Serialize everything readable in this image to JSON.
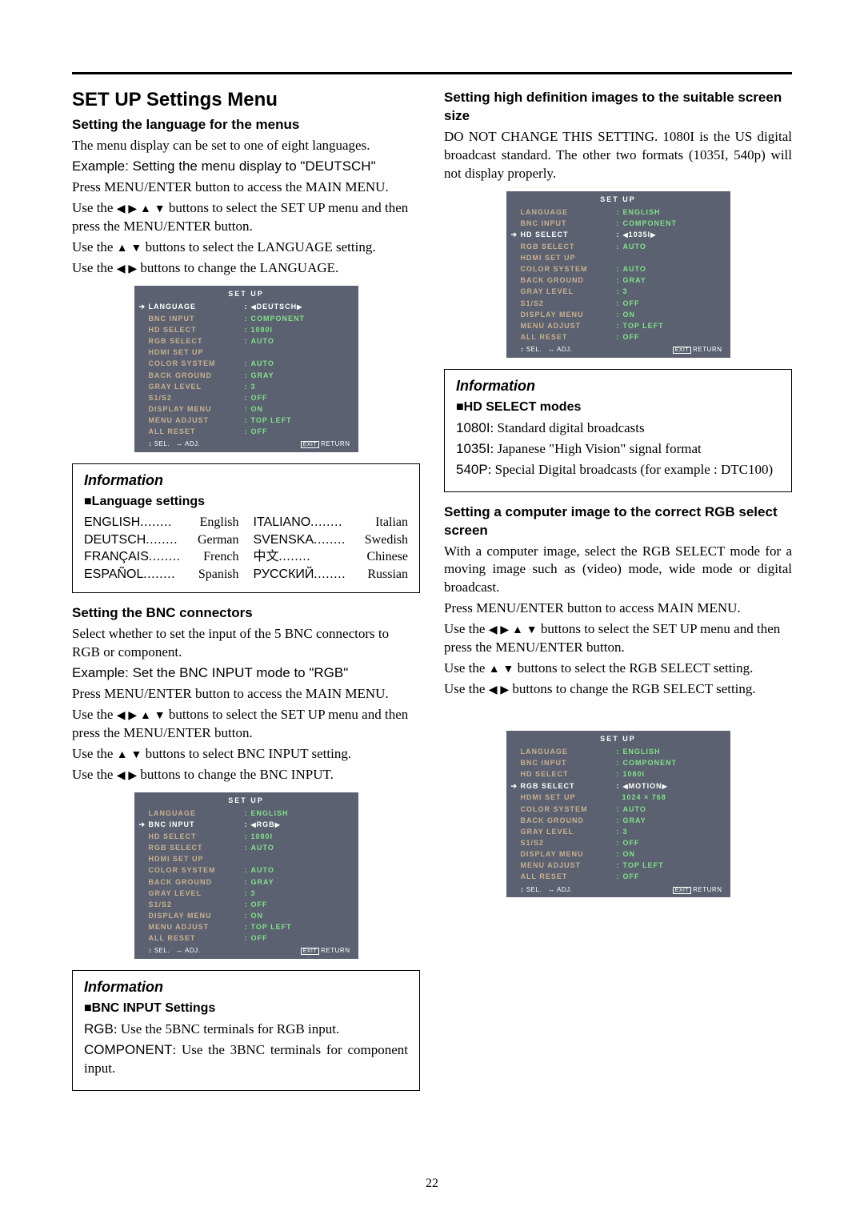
{
  "page_number": "22",
  "left": {
    "main_title": "SET UP Settings Menu",
    "sect1": {
      "heading": "Setting the language for the menus",
      "p1": "The menu display can be set to one of eight languages.",
      "p2": "Example: Setting the menu display to \"DEUTSCH\"",
      "p3": "Press MENU/ENTER button to access the MAIN MENU.",
      "p4a": "Use the ",
      "p4b": " buttons to select the SET UP menu and then press the MENU/ENTER button.",
      "p5a": "Use the ",
      "p5b": " buttons to select the LANGUAGE setting.",
      "p6a": "Use the ",
      "p6b": " buttons to change the LANGUAGE."
    },
    "osd1": {
      "title": "SET UP",
      "active_index": 0,
      "rows": [
        {
          "label": "LANGUAGE",
          "value": "DEUTSCH",
          "triangles": true
        },
        {
          "label": "BNC INPUT",
          "value": "COMPONENT"
        },
        {
          "label": "HD SELECT",
          "value": "1080I"
        },
        {
          "label": "RGB SELECT",
          "value": "AUTO"
        },
        {
          "label": "HDMI SET UP",
          "value": ""
        },
        {
          "label": "COLOR SYSTEM",
          "value": "AUTO"
        },
        {
          "label": "BACK GROUND",
          "value": "GRAY"
        },
        {
          "label": "GRAY LEVEL",
          "value": "3"
        },
        {
          "label": "S1/S2",
          "value": "OFF"
        },
        {
          "label": "DISPLAY MENU",
          "value": "ON"
        },
        {
          "label": "MENU ADJUST",
          "value": "TOP LEFT"
        },
        {
          "label": "ALL RESET",
          "value": "OFF"
        }
      ],
      "foot_sel": "SEL.",
      "foot_adj": "ADJ.",
      "foot_exit": "EXIT",
      "foot_return": "RETURN"
    },
    "info1": {
      "title": "Information",
      "sub": "Language settings",
      "languages": [
        [
          {
            "l": "ENGLISH",
            "r": "English"
          },
          {
            "l": "DEUTSCH",
            "r": "German"
          },
          {
            "l": "FRANÇAIS",
            "r": "French"
          },
          {
            "l": "ESPAÑOL",
            "r": "Spanish"
          }
        ],
        [
          {
            "l": "ITALIANO",
            "r": "Italian"
          },
          {
            "l": "SVENSKA",
            "r": "Swedish"
          },
          {
            "l": "中文",
            "r": "Chinese"
          },
          {
            "l": "РУССКИЙ",
            "r": "Russian"
          }
        ]
      ]
    },
    "sect2": {
      "heading": "Setting the BNC connectors",
      "p1": "Select whether to set the input of the 5 BNC connectors to RGB or component.",
      "p2": "Example: Set the BNC INPUT mode to \"RGB\"",
      "p3": "Press MENU/ENTER button to access the MAIN MENU.",
      "p4a": "Use the ",
      "p4b": " buttons to select the SET UP menu and then press the MENU/ENTER button.",
      "p5a": "Use the ",
      "p5b": " buttons to select BNC INPUT setting.",
      "p6a": "Use the ",
      "p6b": " buttons to change the BNC INPUT."
    },
    "osd2": {
      "title": "SET UP",
      "active_index": 1,
      "rows": [
        {
          "label": "LANGUAGE",
          "value": "ENGLISH"
        },
        {
          "label": "BNC INPUT",
          "value": "RGB",
          "triangles": true
        },
        {
          "label": "HD SELECT",
          "value": "1080I"
        },
        {
          "label": "RGB SELECT",
          "value": "AUTO"
        },
        {
          "label": "HDMI SET UP",
          "value": ""
        },
        {
          "label": "COLOR SYSTEM",
          "value": "AUTO"
        },
        {
          "label": "BACK GROUND",
          "value": "GRAY"
        },
        {
          "label": "GRAY LEVEL",
          "value": "3"
        },
        {
          "label": "S1/S2",
          "value": "OFF"
        },
        {
          "label": "DISPLAY MENU",
          "value": "ON"
        },
        {
          "label": "MENU ADJUST",
          "value": "TOP LEFT"
        },
        {
          "label": "ALL RESET",
          "value": "OFF"
        }
      ]
    },
    "info2": {
      "title": "Information",
      "sub": "BNC INPUT Settings",
      "p1": "RGB: Use the 5BNC terminals for RGB input.",
      "p2": "COMPONENT: Use the 3BNC terminals for component input."
    }
  },
  "right": {
    "sect1": {
      "heading": "Setting high definition images to the suitable screen size",
      "p1": "DO NOT CHANGE THIS SETTING. 1080I is the US digital broadcast standard. The other two formats (1035I, 540p) will not display properly."
    },
    "osd1": {
      "title": "SET UP",
      "active_index": 2,
      "rows": [
        {
          "label": "LANGUAGE",
          "value": "ENGLISH"
        },
        {
          "label": "BNC INPUT",
          "value": "COMPONENT"
        },
        {
          "label": "HD SELECT",
          "value": "1035I",
          "triangles": true
        },
        {
          "label": "RGB SELECT",
          "value": "AUTO"
        },
        {
          "label": "HDMI SET UP",
          "value": ""
        },
        {
          "label": "COLOR SYSTEM",
          "value": "AUTO"
        },
        {
          "label": "BACK GROUND",
          "value": "GRAY"
        },
        {
          "label": "GRAY LEVEL",
          "value": "3"
        },
        {
          "label": "S1/S2",
          "value": "OFF"
        },
        {
          "label": "DISPLAY MENU",
          "value": "ON"
        },
        {
          "label": "MENU ADJUST",
          "value": "TOP LEFT"
        },
        {
          "label": "ALL RESET",
          "value": "OFF"
        }
      ]
    },
    "info1": {
      "title": "Information",
      "sub": "HD SELECT modes",
      "p1": "1080I: Standard digital broadcasts",
      "p2": "1035I: Japanese \"High Vision\" signal format",
      "p3": "540P: Special Digital broadcasts (for example : DTC100)"
    },
    "sect2": {
      "heading": "Setting a computer image to the correct RGB select screen",
      "p1": "With a computer image, select the RGB SELECT mode for a moving image such as (video) mode, wide mode or digital broadcast.",
      "p2": "Press MENU/ENTER button to access MAIN MENU.",
      "p3a": "Use the ",
      "p3b": " buttons to select the SET UP menu and then press the MENU/ENTER button.",
      "p4a": "Use the ",
      "p4b": " buttons to select the RGB SELECT setting.",
      "p5a": "Use the ",
      "p5b": " buttons to change the RGB SELECT setting."
    },
    "osd2": {
      "title": "SET UP",
      "active_index": 3,
      "rows": [
        {
          "label": "LANGUAGE",
          "value": "ENGLISH"
        },
        {
          "label": "BNC INPUT",
          "value": "COMPONENT"
        },
        {
          "label": "HD SELECT",
          "value": "1080I"
        },
        {
          "label": "RGB SELECT",
          "value": "MOTION",
          "triangles": true
        },
        {
          "label": "HDMI SET UP",
          "value": "1024 × 768",
          "nocolon": true
        },
        {
          "label": "COLOR SYSTEM",
          "value": "AUTO"
        },
        {
          "label": "BACK GROUND",
          "value": "GRAY"
        },
        {
          "label": "GRAY LEVEL",
          "value": "3"
        },
        {
          "label": "S1/S2",
          "value": "OFF"
        },
        {
          "label": "DISPLAY MENU",
          "value": "ON"
        },
        {
          "label": "MENU ADJUST",
          "value": "TOP LEFT"
        },
        {
          "label": "ALL RESET",
          "value": "OFF"
        }
      ]
    }
  },
  "arrows": {
    "lrud": "◀ ▶ ▲ ▼",
    "ud": "▲ ▼",
    "lr": "◀ ▶",
    "updown_icon": "▲▼",
    "leftright_icon": "◀▶"
  }
}
